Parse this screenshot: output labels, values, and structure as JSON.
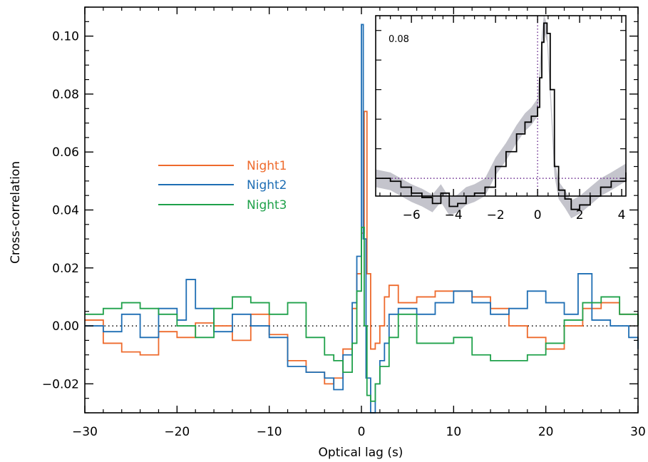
{
  "chart_data": [
    {
      "type": "line",
      "xlabel": "Optical lag (s)",
      "ylabel": "Cross-correlation",
      "xlim": [
        -30,
        30
      ],
      "ylim": [
        -0.03,
        0.11
      ],
      "x_ticks": [
        -30,
        -20,
        -10,
        0,
        10,
        20,
        30
      ],
      "x_tick_labels": [
        "−30",
        "−20",
        "−10",
        "0",
        "10",
        "20",
        "30"
      ],
      "y_ticks": [
        -0.02,
        0.0,
        0.02,
        0.04,
        0.06,
        0.08,
        0.1
      ],
      "y_tick_labels": [
        "−0.02",
        "0.00",
        "0.02",
        "0.04",
        "0.06",
        "0.08",
        "0.10"
      ],
      "reference_line": {
        "y": 0.0,
        "style": "dotted"
      },
      "legend_position": "center-left",
      "series": [
        {
          "name": "Night1",
          "color": "#EE6A2C",
          "x": [
            -30,
            -28,
            -26,
            -24,
            -22,
            -20,
            -18,
            -16,
            -14,
            -12,
            -10,
            -8,
            -6,
            -4,
            -3,
            -2,
            -1,
            -0.5,
            0,
            0.3,
            0.6,
            1,
            1.5,
            2,
            2.5,
            3,
            4,
            6,
            8,
            10,
            12,
            14,
            16,
            18,
            20,
            22,
            24,
            26,
            28,
            30
          ],
          "y": [
            0.002,
            -0.006,
            -0.009,
            -0.01,
            -0.002,
            -0.004,
            0.001,
            0.0,
            -0.005,
            0.004,
            -0.003,
            -0.012,
            -0.016,
            -0.02,
            -0.018,
            -0.008,
            0.006,
            0.018,
            0.032,
            0.074,
            0.018,
            -0.008,
            -0.006,
            0.0,
            0.01,
            0.014,
            0.008,
            0.01,
            0.012,
            0.012,
            0.01,
            0.006,
            0.0,
            -0.004,
            -0.008,
            0.0,
            0.006,
            0.008,
            0.004,
            0.0
          ]
        },
        {
          "name": "Night2",
          "color": "#1E6EB4",
          "x": [
            -30,
            -28,
            -26,
            -24,
            -22,
            -20,
            -19,
            -18,
            -16,
            -14,
            -12,
            -10,
            -8,
            -6,
            -4,
            -3,
            -2,
            -1,
            -0.5,
            0,
            0.2,
            0.5,
            1,
            1.5,
            2,
            2.5,
            3,
            4,
            6,
            8,
            10,
            12,
            14,
            16,
            18,
            20,
            22,
            23.5,
            25,
            27,
            29,
            30
          ],
          "y": [
            0.0,
            -0.002,
            0.004,
            -0.004,
            0.006,
            0.002,
            0.016,
            0.006,
            -0.002,
            0.004,
            0.0,
            -0.004,
            -0.014,
            -0.016,
            -0.018,
            -0.022,
            -0.01,
            0.008,
            0.024,
            0.104,
            0.03,
            -0.018,
            -0.03,
            -0.02,
            -0.012,
            -0.006,
            0.004,
            0.006,
            0.004,
            0.008,
            0.012,
            0.008,
            0.004,
            0.006,
            0.012,
            0.008,
            0.004,
            0.018,
            0.002,
            0.0,
            -0.004,
            -0.008
          ]
        },
        {
          "name": "Night3",
          "color": "#1FA14A",
          "x": [
            -30,
            -28,
            -26,
            -24,
            -22,
            -20,
            -18,
            -16,
            -14,
            -12,
            -10,
            -8,
            -6,
            -4,
            -3,
            -2,
            -1,
            -0.5,
            0,
            0.3,
            0.6,
            1,
            1.5,
            2,
            3,
            4,
            6,
            8,
            10,
            12,
            14,
            16,
            18,
            20,
            22,
            24,
            26,
            28,
            30
          ],
          "y": [
            0.004,
            0.006,
            0.008,
            0.006,
            0.004,
            0.0,
            -0.004,
            0.006,
            0.01,
            0.008,
            0.004,
            0.008,
            -0.004,
            -0.01,
            -0.012,
            -0.016,
            -0.006,
            0.012,
            0.034,
            0.0,
            -0.024,
            -0.026,
            -0.02,
            -0.014,
            -0.004,
            0.004,
            -0.006,
            -0.006,
            -0.004,
            -0.01,
            -0.012,
            -0.012,
            -0.01,
            -0.006,
            0.002,
            0.008,
            0.01,
            0.004,
            0.0
          ]
        }
      ]
    },
    {
      "type": "line",
      "xlim": [
        -7.7,
        4.2
      ],
      "ylim": [
        -0.012,
        0.11
      ],
      "x_ticks": [
        -6,
        -4,
        -2,
        0,
        2,
        4
      ],
      "x_tick_labels": [
        "−6",
        "−4",
        "−2",
        "0",
        "2",
        "4"
      ],
      "annotation": "0.08",
      "reference_lines": {
        "x": 0.0,
        "y": 0.0,
        "style": "dotted",
        "color": "#6B2C8F"
      },
      "band_color": "#C4C4CC",
      "series": [
        {
          "color": "#000000",
          "x": [
            -7.7,
            -7,
            -6.5,
            -6,
            -5.5,
            -5,
            -4.6,
            -4.2,
            -3.8,
            -3.4,
            -3,
            -2.5,
            -2,
            -1.5,
            -1,
            -0.6,
            -0.3,
            0,
            0.1,
            0.2,
            0.3,
            0.45,
            0.6,
            0.8,
            1,
            1.3,
            1.6,
            2,
            2.5,
            3,
            3.5,
            4.2
          ],
          "y": [
            0.0,
            -0.002,
            -0.006,
            -0.01,
            -0.013,
            -0.017,
            -0.01,
            -0.019,
            -0.017,
            -0.012,
            -0.01,
            -0.006,
            0.008,
            0.018,
            0.03,
            0.038,
            0.042,
            0.048,
            0.068,
            0.092,
            0.105,
            0.098,
            0.06,
            0.008,
            -0.008,
            -0.014,
            -0.021,
            -0.018,
            -0.012,
            -0.006,
            -0.002,
            0.004
          ]
        }
      ]
    }
  ]
}
